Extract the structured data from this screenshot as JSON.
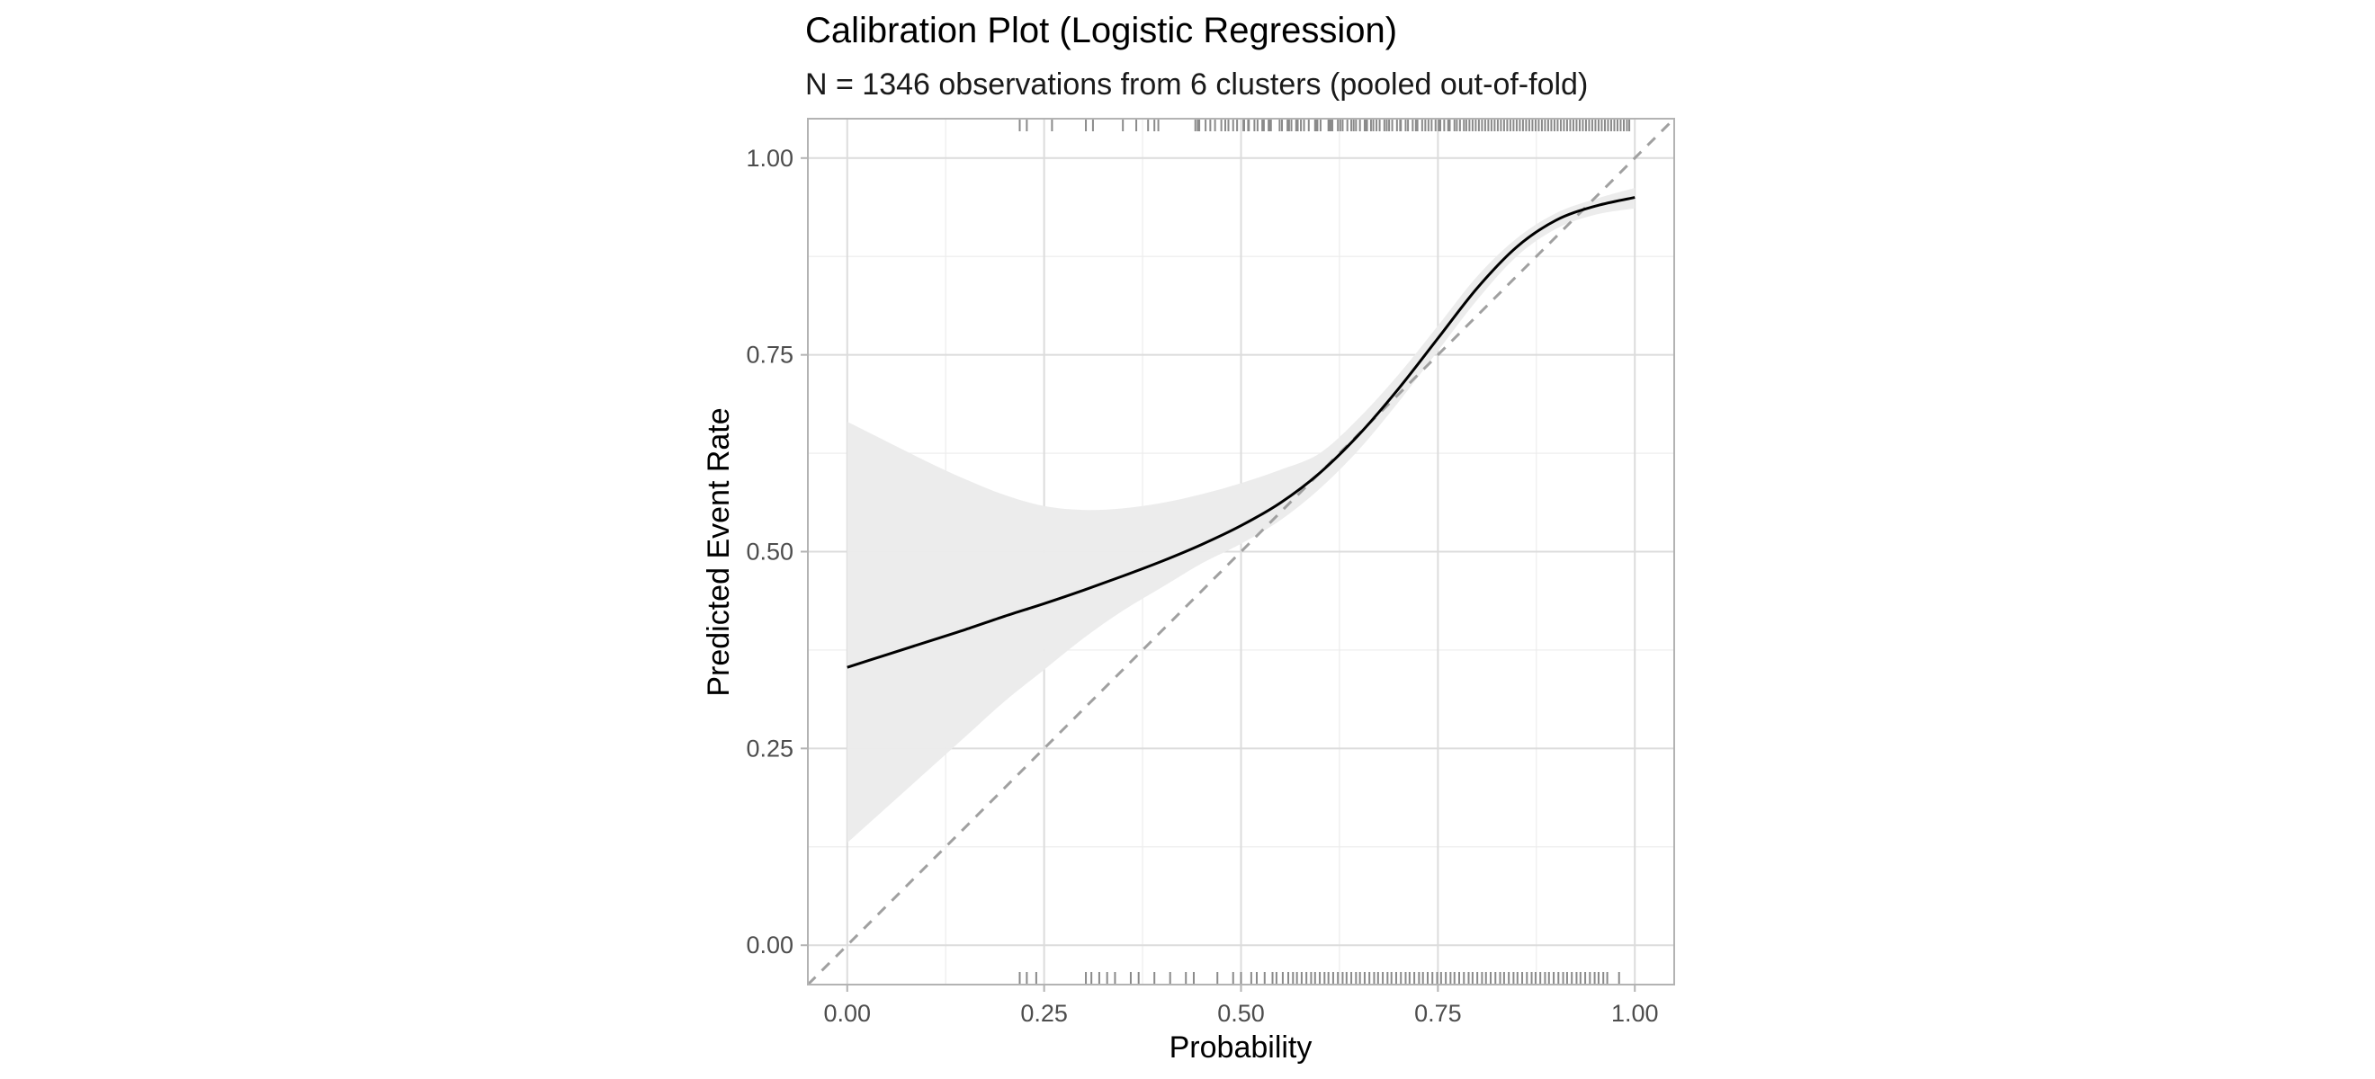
{
  "chart_data": {
    "type": "line",
    "title": "Calibration Plot (Logistic Regression)",
    "subtitle": "N = 1346 observations from 6 clusters (pooled out-of-fold)",
    "xlabel": "Probability",
    "ylabel": "Predicted Event Rate",
    "xlim": [
      -0.05,
      1.05
    ],
    "ylim": [
      -0.05,
      1.05
    ],
    "x_ticks": [
      0.0,
      0.25,
      0.5,
      0.75,
      1.0
    ],
    "x_tick_labels": [
      "0.00",
      "0.25",
      "0.50",
      "0.75",
      "1.00"
    ],
    "y_ticks": [
      0.0,
      0.25,
      0.5,
      0.75,
      1.0
    ],
    "y_tick_labels": [
      "0.00",
      "0.25",
      "0.50",
      "0.75",
      "1.00"
    ],
    "grid": true,
    "legend": "none",
    "series": [
      {
        "name": "calibration-curve",
        "style": "solid",
        "color": "#000000",
        "x": [
          0.0,
          0.05,
          0.1,
          0.15,
          0.2,
          0.25,
          0.3,
          0.35,
          0.4,
          0.45,
          0.5,
          0.55,
          0.6,
          0.65,
          0.7,
          0.75,
          0.8,
          0.85,
          0.9,
          0.95,
          1.0
        ],
        "y": [
          0.353,
          0.369,
          0.385,
          0.401,
          0.418,
          0.434,
          0.451,
          0.469,
          0.488,
          0.509,
          0.533,
          0.562,
          0.6,
          0.649,
          0.707,
          0.771,
          0.835,
          0.887,
          0.921,
          0.939,
          0.95
        ],
        "ci_lower": [
          0.13,
          0.175,
          0.22,
          0.265,
          0.31,
          0.35,
          0.39,
          0.425,
          0.455,
          0.485,
          0.51,
          0.54,
          0.58,
          0.63,
          0.69,
          0.755,
          0.82,
          0.875,
          0.91,
          0.928,
          0.936
        ],
        "ci_upper": [
          0.665,
          0.64,
          0.615,
          0.592,
          0.572,
          0.558,
          0.553,
          0.555,
          0.562,
          0.573,
          0.587,
          0.604,
          0.625,
          0.67,
          0.725,
          0.787,
          0.85,
          0.898,
          0.93,
          0.948,
          0.962
        ]
      },
      {
        "name": "perfect-calibration-reference",
        "style": "dashed",
        "color": "#a0a0a0",
        "x": [
          -0.05,
          1.05
        ],
        "y": [
          -0.05,
          1.05
        ]
      }
    ],
    "rug_top": [
      0.219,
      0.228,
      0.26,
      0.303,
      0.312,
      0.35,
      0.367,
      0.382,
      0.39,
      0.395,
      0.442,
      0.445,
      0.447,
      0.455,
      0.461,
      0.467,
      0.475,
      0.48,
      0.484,
      0.49,
      0.495,
      0.503,
      0.504,
      0.509,
      0.51,
      0.517,
      0.521,
      0.527,
      0.529,
      0.535,
      0.536,
      0.538,
      0.549,
      0.552,
      0.559,
      0.561,
      0.564,
      0.57,
      0.572,
      0.576,
      0.58,
      0.586,
      0.594,
      0.595,
      0.597,
      0.601,
      0.611,
      0.613,
      0.614,
      0.616,
      0.623,
      0.626,
      0.629,
      0.635,
      0.64,
      0.643,
      0.646,
      0.651,
      0.657,
      0.659,
      0.66,
      0.665,
      0.668,
      0.672,
      0.676,
      0.682,
      0.685,
      0.688,
      0.692,
      0.698,
      0.702,
      0.703,
      0.709,
      0.712,
      0.718,
      0.722,
      0.724,
      0.73,
      0.734,
      0.738,
      0.742,
      0.747,
      0.751,
      0.753,
      0.758,
      0.763,
      0.765,
      0.771,
      0.774,
      0.778,
      0.783,
      0.786,
      0.79,
      0.794,
      0.798,
      0.802,
      0.806,
      0.81,
      0.814,
      0.818,
      0.822,
      0.826,
      0.83,
      0.834,
      0.838,
      0.842,
      0.846,
      0.85,
      0.854,
      0.858,
      0.862,
      0.866,
      0.87,
      0.874,
      0.878,
      0.882,
      0.886,
      0.89,
      0.894,
      0.898,
      0.902,
      0.906,
      0.91,
      0.914,
      0.918,
      0.922,
      0.926,
      0.93,
      0.934,
      0.938,
      0.942,
      0.946,
      0.95,
      0.954,
      0.958,
      0.962,
      0.966,
      0.97,
      0.974,
      0.978,
      0.982,
      0.986,
      0.99,
      0.993
    ],
    "rug_bottom": [
      0.219,
      0.228,
      0.24,
      0.303,
      0.31,
      0.32,
      0.33,
      0.34,
      0.36,
      0.37,
      0.39,
      0.41,
      0.43,
      0.44,
      0.47,
      0.49,
      0.5,
      0.513,
      0.52,
      0.53,
      0.54,
      0.545,
      0.553,
      0.56,
      0.566,
      0.571,
      0.577,
      0.583,
      0.589,
      0.594,
      0.6,
      0.606,
      0.611,
      0.617,
      0.623,
      0.629,
      0.634,
      0.64,
      0.646,
      0.651,
      0.657,
      0.663,
      0.669,
      0.674,
      0.68,
      0.686,
      0.691,
      0.697,
      0.703,
      0.709,
      0.714,
      0.72,
      0.726,
      0.731,
      0.737,
      0.743,
      0.749,
      0.754,
      0.76,
      0.766,
      0.771,
      0.777,
      0.783,
      0.789,
      0.794,
      0.8,
      0.806,
      0.811,
      0.817,
      0.823,
      0.829,
      0.834,
      0.84,
      0.846,
      0.851,
      0.857,
      0.863,
      0.869,
      0.874,
      0.88,
      0.886,
      0.891,
      0.897,
      0.903,
      0.909,
      0.914,
      0.92,
      0.926,
      0.931,
      0.937,
      0.943,
      0.949,
      0.954,
      0.96,
      0.965,
      0.98
    ]
  }
}
